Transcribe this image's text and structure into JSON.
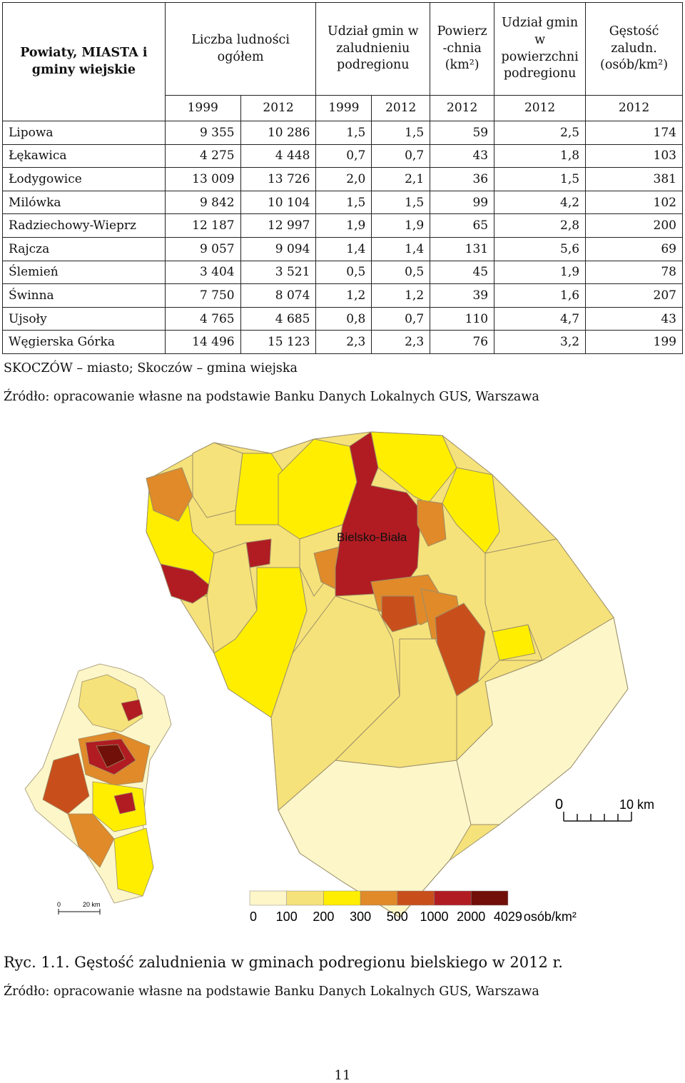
{
  "table": {
    "headers": {
      "name": "Powiaty, MIASTA i gminy wiejskie",
      "population": "Liczba ludności ogółem",
      "pop_share": "Udział gmin w zaludnieniu podregionu",
      "area": "Powierz -chnia (km²)",
      "area_share": "Udział gmin w powierzchni podregionu",
      "density": "Gęstość zaludn. (osób/km²)"
    },
    "years": [
      "1999",
      "2012",
      "1999",
      "2012",
      "2012",
      "2012",
      "2012"
    ],
    "rows": [
      [
        "Lipowa",
        "9 355",
        "10 286",
        "1,5",
        "1,5",
        "59",
        "2,5",
        "174"
      ],
      [
        "Łękawica",
        "4 275",
        "4 448",
        "0,7",
        "0,7",
        "43",
        "1,8",
        "103"
      ],
      [
        "Łodygowice",
        "13 009",
        "13 726",
        "2,0",
        "2,1",
        "36",
        "1,5",
        "381"
      ],
      [
        "Milówka",
        "9 842",
        "10 104",
        "1,5",
        "1,5",
        "99",
        "4,2",
        "102"
      ],
      [
        "Radziechowy-Wieprz",
        "12 187",
        "12 997",
        "1,9",
        "1,9",
        "65",
        "2,8",
        "200"
      ],
      [
        "Rajcza",
        "9 057",
        "9 094",
        "1,4",
        "1,4",
        "131",
        "5,6",
        "69"
      ],
      [
        "Ślemień",
        "3 404",
        "3 521",
        "0,5",
        "0,5",
        "45",
        "1,9",
        "78"
      ],
      [
        "Świnna",
        "7 750",
        "8 074",
        "1,2",
        "1,2",
        "39",
        "1,6",
        "207"
      ],
      [
        "Ujsoły",
        "4 765",
        "4 685",
        "0,8",
        "0,7",
        "110",
        "4,7",
        "43"
      ],
      [
        "Węgierska Górka",
        "14 496",
        "15 123",
        "2,3",
        "2,3",
        "76",
        "3,2",
        "199"
      ]
    ]
  },
  "note": "SKOCZÓW – miasto; Skoczów – gmina wiejska",
  "source": "Źródło: opracowanie własne na podstawie Banku Danych Lokalnych GUS, Warszawa",
  "map": {
    "city_label": "Bielsko-Biała",
    "scale_zero": "0",
    "scale_label": "10 km",
    "inset_scale_zero": "0",
    "inset_scale_label": "20 km",
    "legend_ticks": [
      "0",
      "100",
      "200",
      "300",
      "500",
      "1000",
      "2000",
      "4029"
    ],
    "legend_unit": "osób/km²",
    "legend_colors": [
      "#fdf6c9",
      "#f6e27a",
      "#ffee00",
      "#e08a2a",
      "#c84f1c",
      "#b01c22",
      "#701008"
    ]
  },
  "caption": "Ryc. 1.1. Gęstość zaludnienia w gminach podregionu bielskiego w 2012 r.",
  "source2": "Źródło: opracowanie własne na podstawie Banku Danych Lokalnych GUS, Warszawa",
  "page_number": "11"
}
